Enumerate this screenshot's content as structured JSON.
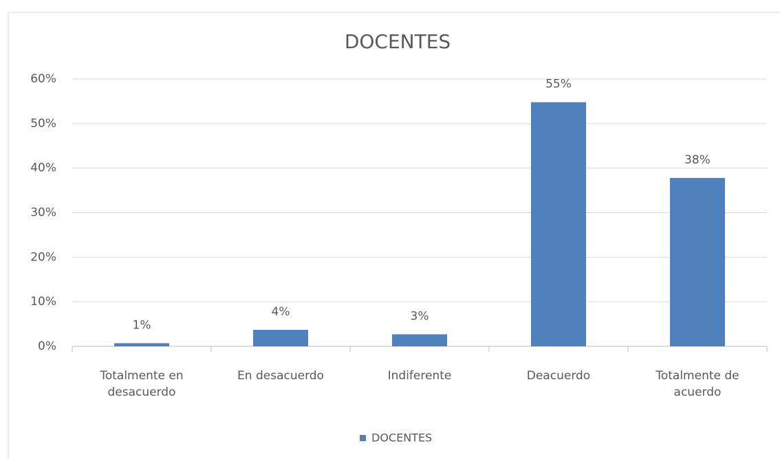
{
  "chart_data": {
    "type": "bar",
    "title": "DOCENTES",
    "categories": [
      "Totalmente en desacuerdo",
      "En desacuerdo",
      "Indiferente",
      "Deacuerdo",
      "Totalmente de acuerdo"
    ],
    "series": [
      {
        "name": "DOCENTES",
        "color": "#4f81bd",
        "values": [
          0.7,
          3.7,
          2.7,
          54.8,
          37.8
        ],
        "value_labels": [
          "1%",
          "4%",
          "3%",
          "55%",
          "38%"
        ]
      }
    ],
    "ylim": [
      0,
      60
    ],
    "yticks": [
      {
        "value": 0,
        "label": "0%"
      },
      {
        "value": 10,
        "label": "10%"
      },
      {
        "value": 20,
        "label": "20%"
      },
      {
        "value": 30,
        "label": "30%"
      },
      {
        "value": 40,
        "label": "40%"
      },
      {
        "value": 50,
        "label": "50%"
      },
      {
        "value": 60,
        "label": "60%"
      }
    ],
    "grid": true,
    "legend": "bottom"
  }
}
